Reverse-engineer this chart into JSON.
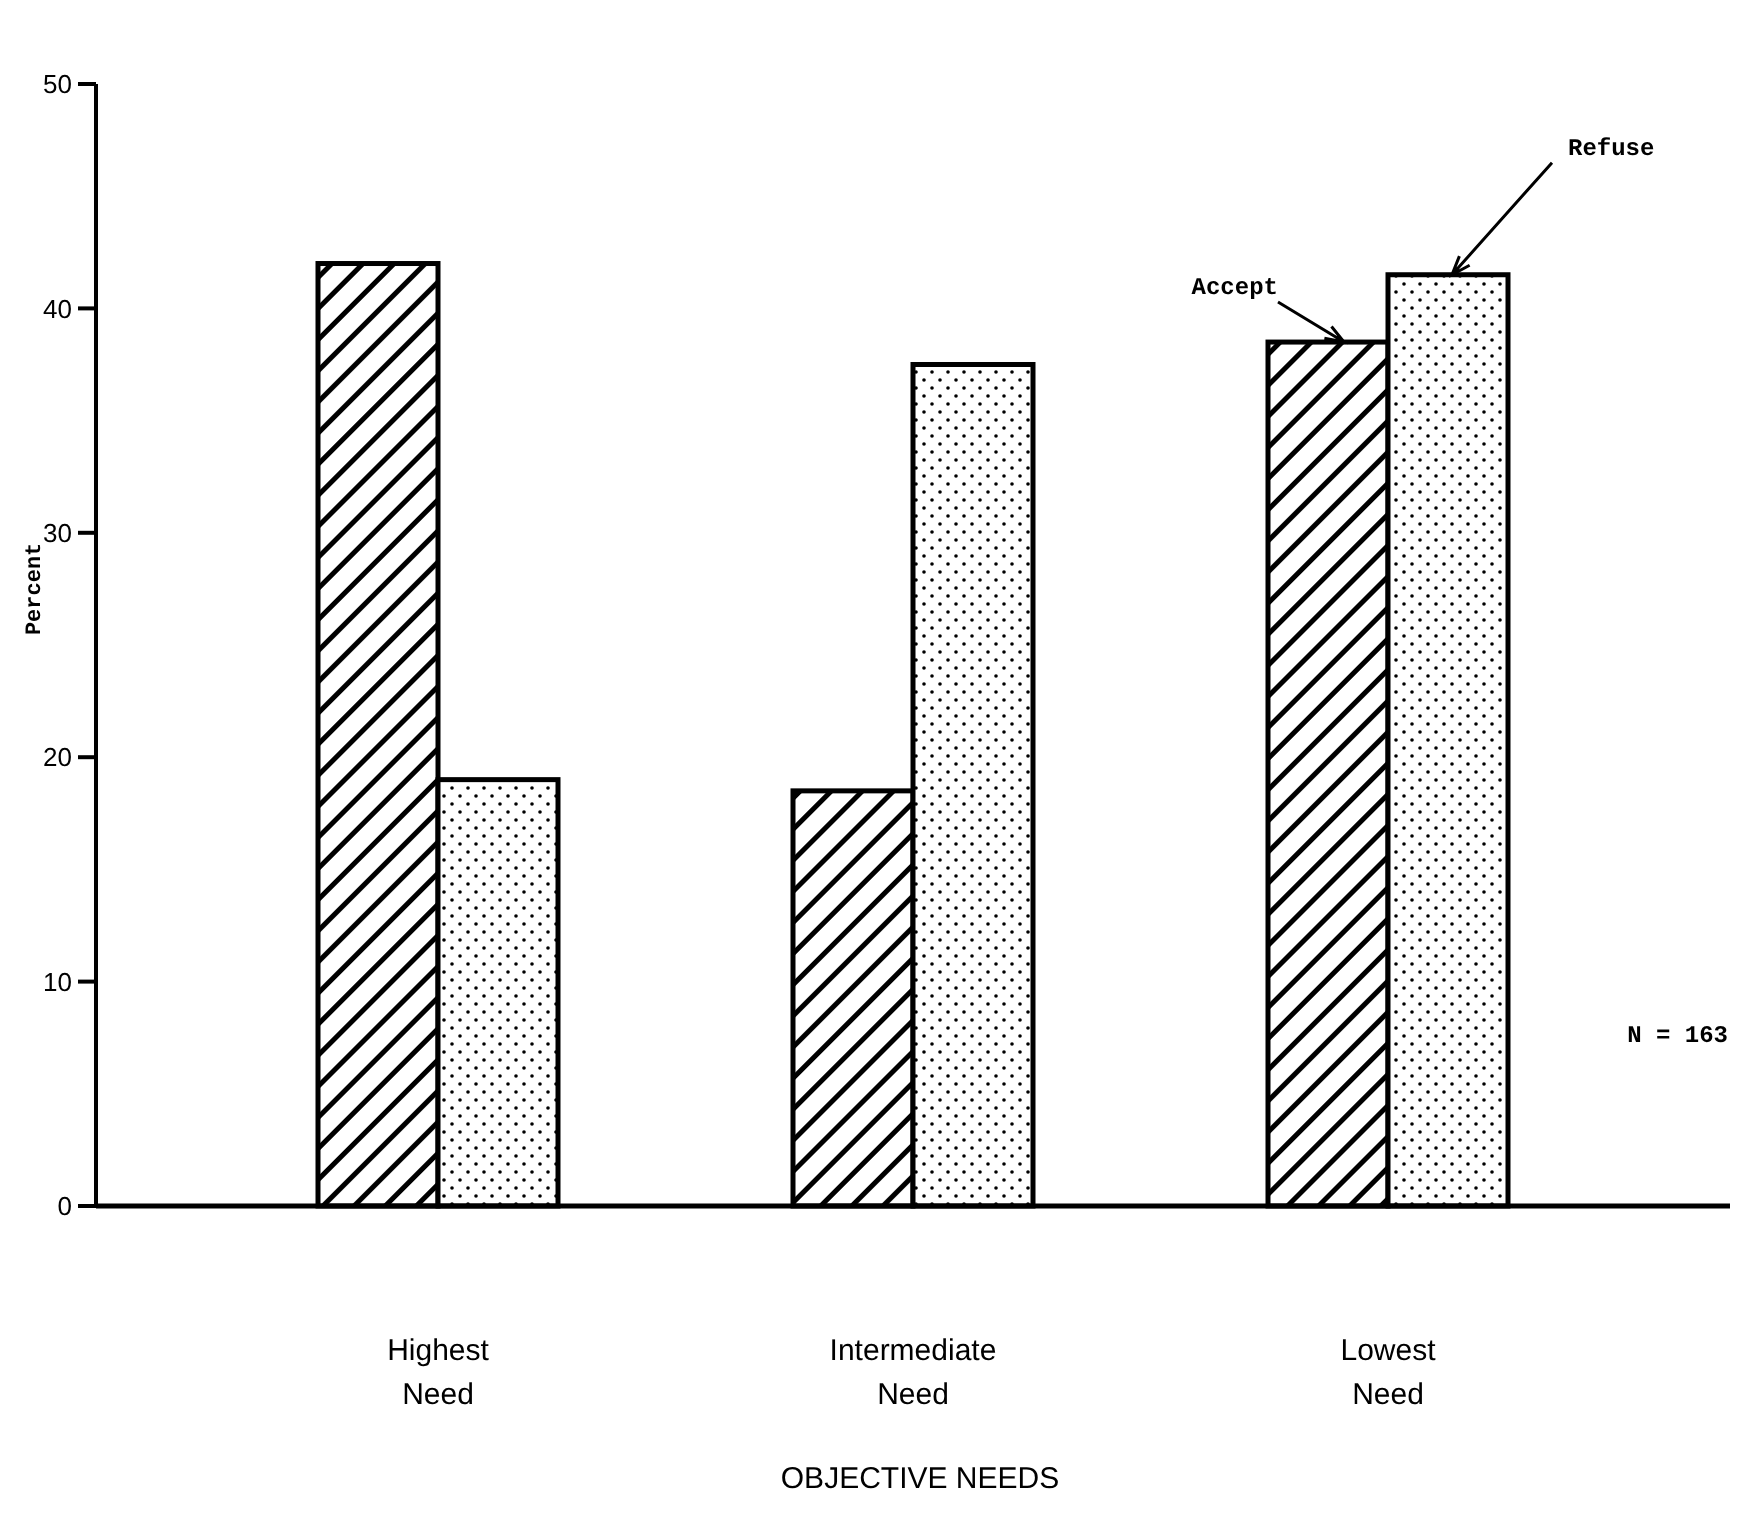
{
  "chart_data": {
    "type": "bar",
    "xlabel": "OBJECTIVE NEEDS",
    "ylabel": "Percent",
    "categories": [
      "Highest Need",
      "Intermediate Need",
      "Lowest Need"
    ],
    "series": [
      {
        "name": "Accept",
        "color": "#000000",
        "values": [
          42,
          18.5,
          38.5
        ]
      },
      {
        "name": "Refuse",
        "color": "#000000",
        "values": [
          19,
          37.5,
          41.5
        ]
      }
    ],
    "ylim": [
      0,
      50
    ],
    "yticks": [
      0,
      10,
      20,
      30,
      40,
      50
    ],
    "grid": false,
    "annotations": [
      "N = 163"
    ]
  }
}
